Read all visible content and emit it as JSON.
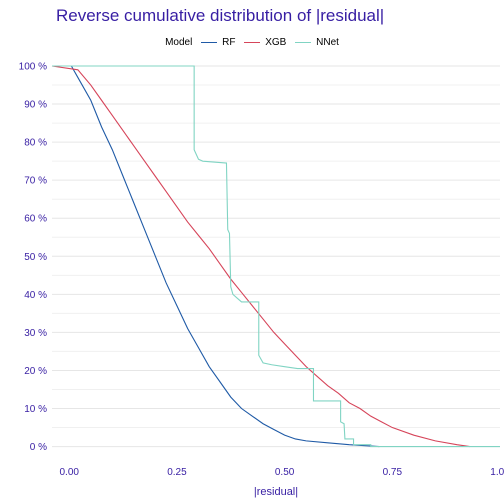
{
  "chart_data": {
    "type": "line",
    "title": "Reverse cumulative distribution of |residual|",
    "xlabel": "|residual|",
    "ylabel": "",
    "xlim": [
      -0.04,
      1.0
    ],
    "ylim": [
      -3,
      100
    ],
    "x_ticks": [
      0,
      0.25,
      0.5,
      0.75,
      1.0
    ],
    "x_tick_labels": [
      "0.00",
      "0.25",
      "0.50",
      "0.75",
      "1.00"
    ],
    "y_ticks": [
      0,
      10,
      20,
      30,
      40,
      50,
      60,
      70,
      80,
      90,
      100
    ],
    "y_tick_labels": [
      "0 %",
      "10 %",
      "20 %",
      "30 %",
      "40 %",
      "50 %",
      "60 %",
      "70 %",
      "80 %",
      "90 %",
      "100 %"
    ],
    "grid": true,
    "legend_title": "Model",
    "legend_position": "top",
    "series": [
      {
        "name": "RF",
        "color": "#1f5aa6",
        "step": false,
        "points": [
          [
            -0.04,
            100
          ],
          [
            0.005,
            100
          ],
          [
            0.02,
            97
          ],
          [
            0.05,
            91
          ],
          [
            0.075,
            84
          ],
          [
            0.1,
            78
          ],
          [
            0.125,
            71
          ],
          [
            0.15,
            64
          ],
          [
            0.175,
            57
          ],
          [
            0.2,
            50
          ],
          [
            0.225,
            43
          ],
          [
            0.25,
            37
          ],
          [
            0.275,
            31
          ],
          [
            0.3,
            26
          ],
          [
            0.325,
            21
          ],
          [
            0.35,
            17
          ],
          [
            0.375,
            13
          ],
          [
            0.4,
            10
          ],
          [
            0.425,
            8
          ],
          [
            0.45,
            6
          ],
          [
            0.475,
            4.5
          ],
          [
            0.5,
            3
          ],
          [
            0.525,
            2
          ],
          [
            0.55,
            1.5
          ],
          [
            0.6,
            1
          ],
          [
            0.65,
            0.5
          ],
          [
            0.72,
            0
          ]
        ]
      },
      {
        "name": "XGB",
        "color": "#d6455a",
        "step": false,
        "points": [
          [
            -0.04,
            100
          ],
          [
            0.02,
            99
          ],
          [
            0.05,
            95
          ],
          [
            0.075,
            91
          ],
          [
            0.1,
            87
          ],
          [
            0.125,
            83
          ],
          [
            0.15,
            79
          ],
          [
            0.175,
            75
          ],
          [
            0.2,
            71
          ],
          [
            0.225,
            67
          ],
          [
            0.25,
            63
          ],
          [
            0.275,
            59
          ],
          [
            0.3,
            55.5
          ],
          [
            0.325,
            52
          ],
          [
            0.35,
            48
          ],
          [
            0.375,
            44
          ],
          [
            0.4,
            40.5
          ],
          [
            0.425,
            37
          ],
          [
            0.45,
            33.5
          ],
          [
            0.475,
            30
          ],
          [
            0.5,
            27
          ],
          [
            0.525,
            24
          ],
          [
            0.55,
            21
          ],
          [
            0.575,
            18.5
          ],
          [
            0.6,
            16
          ],
          [
            0.625,
            14
          ],
          [
            0.65,
            11.5
          ],
          [
            0.675,
            10
          ],
          [
            0.7,
            8
          ],
          [
            0.725,
            6.5
          ],
          [
            0.75,
            5
          ],
          [
            0.8,
            3
          ],
          [
            0.85,
            1.5
          ],
          [
            0.9,
            0.5
          ],
          [
            0.93,
            0
          ]
        ]
      },
      {
        "name": "NNet",
        "color": "#80d4c3",
        "step": false,
        "points": [
          [
            -0.04,
            100
          ],
          [
            0.29,
            100
          ],
          [
            0.29,
            78
          ],
          [
            0.3,
            75.5
          ],
          [
            0.31,
            75
          ],
          [
            0.365,
            74.5
          ],
          [
            0.368,
            57
          ],
          [
            0.372,
            56
          ],
          [
            0.375,
            42
          ],
          [
            0.38,
            40
          ],
          [
            0.39,
            39
          ],
          [
            0.4,
            38
          ],
          [
            0.44,
            38
          ],
          [
            0.44,
            24
          ],
          [
            0.45,
            22
          ],
          [
            0.47,
            21.5
          ],
          [
            0.5,
            21
          ],
          [
            0.53,
            20.5
          ],
          [
            0.567,
            20.5
          ],
          [
            0.567,
            12
          ],
          [
            0.63,
            12
          ],
          [
            0.63,
            6.5
          ],
          [
            0.638,
            6
          ],
          [
            0.64,
            2
          ],
          [
            0.66,
            2
          ],
          [
            0.66,
            0.5
          ],
          [
            0.7,
            0.5
          ],
          [
            0.7,
            0
          ],
          [
            1.0,
            0
          ]
        ]
      }
    ]
  }
}
